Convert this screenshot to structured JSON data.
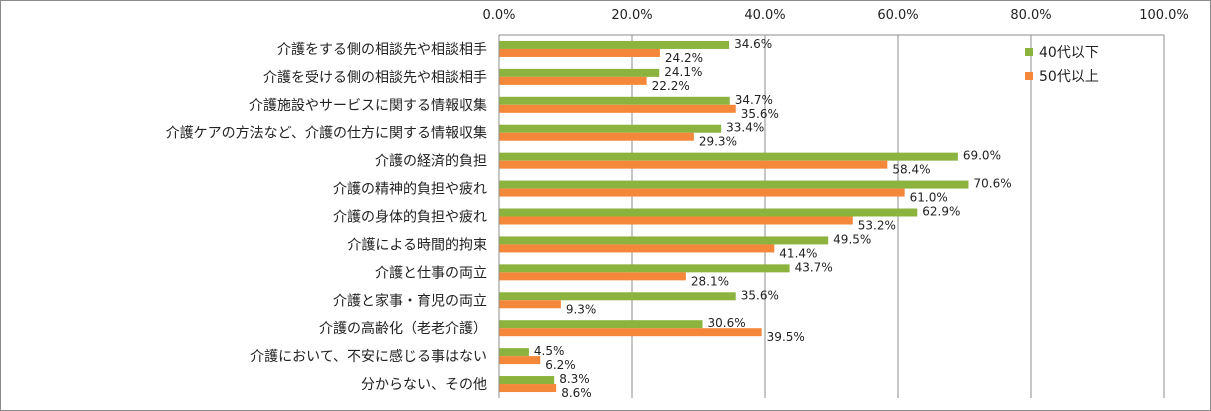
{
  "chart_data": {
    "type": "bar",
    "orientation": "horizontal",
    "xlim": [
      0,
      100
    ],
    "x_ticks": [
      "0.0%",
      "20.0%",
      "40.0%",
      "60.0%",
      "80.0%",
      "100.0%"
    ],
    "grid": true,
    "legend_position": "top-right",
    "categories": [
      "介護をする側の相談先や相談相手",
      "介護を受ける側の相談先や相談相手",
      "介護施設やサービスに関する情報収集",
      "介護ケアの方法など、介護の仕方に関する情報収集",
      "介護の経済的負担",
      "介護の精神的負担や疲れ",
      "介護の身体的負担や疲れ",
      "介護による時間的拘束",
      "介護と仕事の両立",
      "介護と家事・育児の両立",
      "介護の高齢化（老老介護）",
      "介護において、不安に感じる事はない",
      "分からない、その他"
    ],
    "series": [
      {
        "name": "40代以下",
        "color": "#8db33f",
        "values": [
          34.6,
          24.1,
          34.7,
          33.4,
          69.0,
          70.6,
          62.9,
          49.5,
          43.7,
          35.6,
          30.6,
          4.5,
          8.3
        ],
        "labels": [
          "34.6%",
          "24.1%",
          "34.7%",
          "33.4%",
          "69.0%",
          "70.6%",
          "62.9%",
          "49.5%",
          "43.7%",
          "35.6%",
          "30.6%",
          "4.5%",
          "8.3%"
        ]
      },
      {
        "name": "50代以上",
        "color": "#f5873a",
        "values": [
          24.2,
          22.2,
          35.6,
          29.3,
          58.4,
          61.0,
          53.2,
          41.4,
          28.1,
          9.3,
          39.5,
          6.2,
          8.6
        ],
        "labels": [
          "24.2%",
          "22.2%",
          "35.6%",
          "29.3%",
          "58.4%",
          "61.0%",
          "53.2%",
          "41.4%",
          "28.1%",
          "9.3%",
          "39.5%",
          "6.2%",
          "8.6%"
        ]
      }
    ]
  }
}
